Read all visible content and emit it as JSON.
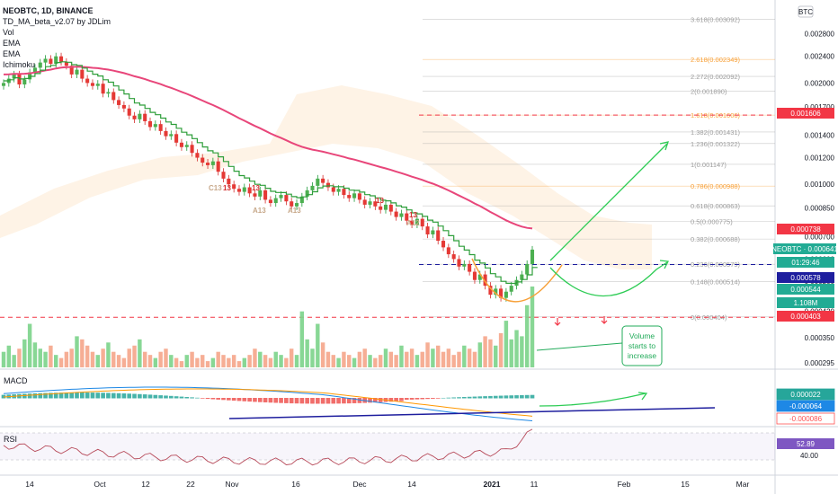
{
  "header": {
    "symbol_line": "NEOBTC, 1D, BINANCE",
    "indicators": [
      "TD_MA_beta_v2.07 by JDLim",
      "Vol",
      "EMA",
      "EMA",
      "Ichimoku"
    ]
  },
  "price_axis": {
    "currency": "BTC",
    "ticks": [
      "0.003200",
      "0.002800",
      "0.002400",
      "0.002000",
      "0.001700",
      "0.001400",
      "0.001200",
      "0.001000",
      "0.000850",
      "0.000700",
      "0.000600",
      "0.000500",
      "0.000420",
      "0.000350",
      "0.000295"
    ],
    "badges": [
      {
        "text": "0.001606",
        "color": "#f23645"
      },
      {
        "text": "0.000738",
        "color": "#f23645"
      },
      {
        "text": "NEOBTC · 0.000641",
        "color": "#22ab94"
      },
      {
        "text": "01:29:46",
        "color": "#22ab94"
      },
      {
        "text": "0.000578",
        "color": "#1e1e9e"
      },
      {
        "text": "0.000544",
        "color": "#22ab94"
      },
      {
        "text": "1.108M",
        "color": "#22ab94"
      },
      {
        "text": "0.000403",
        "color": "#f23645"
      }
    ]
  },
  "fibonacci": [
    {
      "label": "3.618(0.003092)",
      "color": "#9e9e9e"
    },
    {
      "label": "2.618(0.002349)",
      "color": "#f7a13a"
    },
    {
      "label": "2.272(0.002092)",
      "color": "#9e9e9e"
    },
    {
      "label": "2(0.001890)",
      "color": "#9e9e9e"
    },
    {
      "label": "1.618(0.001606)",
      "color": "#f7a13a"
    },
    {
      "label": "1.382(0.001431)",
      "color": "#9e9e9e"
    },
    {
      "label": "1.236(0.001322)",
      "color": "#9e9e9e"
    },
    {
      "label": "1(0.001147)",
      "color": "#9e9e9e"
    },
    {
      "label": "0.786(0.000988)",
      "color": "#f7a13a"
    },
    {
      "label": "0.618(0.000863)",
      "color": "#9e9e9e"
    },
    {
      "label": "0.5(0.000775)",
      "color": "#9e9e9e"
    },
    {
      "label": "0.382(0.000688)",
      "color": "#9e9e9e"
    },
    {
      "label": "0.236(0.000579)",
      "color": "#9e9e9e"
    },
    {
      "label": "0.148(0.000514)",
      "color": "#9e9e9e"
    },
    {
      "label": "0(0.000404)",
      "color": "#9e9e9e"
    }
  ],
  "annotation": {
    "text": "Volume\nstarts to\nincrease",
    "color": "#22ab5a"
  },
  "td_labels": [
    "C13",
    "13",
    "A13",
    "13",
    "A13",
    "13",
    "A12",
    "13"
  ],
  "macd": {
    "label": "MACD",
    "badges": [
      {
        "text": "0.000022",
        "color": "#26a69a"
      },
      {
        "text": "-0.000064",
        "color": "#1e88e5"
      },
      {
        "text": "-0.000086",
        "color": "#ff5252"
      }
    ]
  },
  "rsi": {
    "label": "RSI",
    "badge": {
      "text": "52.89",
      "color": "#7e57c2"
    },
    "ticks": [
      "40.00"
    ]
  },
  "time_axis": {
    "ticks": [
      "14",
      "Oct",
      "12",
      "22",
      "Nov",
      "16",
      "Dec",
      "14",
      "2021",
      "11",
      "Feb",
      "15",
      "Mar"
    ]
  },
  "chart_data": {
    "type": "candlestick",
    "title": "NEOBTC, 1D, BINANCE",
    "ylabel": "BTC",
    "ylim": [
      0.000295,
      0.0034
    ],
    "y_scale": "log",
    "close_series": [
      0.002,
      0.00206,
      0.00212,
      0.00198,
      0.00205,
      0.00215,
      0.00222,
      0.0023,
      0.00236,
      0.00228,
      0.0024,
      0.00231,
      0.00225,
      0.00212,
      0.00219,
      0.00206,
      0.002,
      0.00196,
      0.00199,
      0.00186,
      0.00188,
      0.00178,
      0.00172,
      0.00168,
      0.0016,
      0.00156,
      0.00162,
      0.00154,
      0.00148,
      0.00151,
      0.00144,
      0.00139,
      0.00141,
      0.00133,
      0.00129,
      0.00131,
      0.00124,
      0.0012,
      0.00116,
      0.00114,
      0.00117,
      0.00109,
      0.00104,
      0.001,
      0.00097,
      0.00095,
      0.00098,
      0.00094,
      0.00092,
      0.00096,
      0.0009,
      0.00088,
      0.00091,
      0.00093,
      0.00089,
      0.00086,
      0.00088,
      0.00092,
      0.00096,
      0.00099,
      0.00104,
      0.00101,
      0.00098,
      0.00095,
      0.00097,
      0.00093,
      0.00091,
      0.00094,
      0.0009,
      0.00087,
      0.00089,
      0.00086,
      0.00084,
      0.00087,
      0.00083,
      0.0008,
      0.00082,
      0.00078,
      0.00076,
      0.00079,
      0.00075,
      0.00071,
      0.00073,
      0.00068,
      0.00065,
      0.00062,
      0.0006,
      0.00057,
      0.00058,
      0.00055,
      0.00052,
      0.00054,
      0.0005,
      0.00047,
      0.00049,
      0.00046,
      0.00048,
      0.0005,
      0.00052,
      0.00054,
      0.00058,
      0.00064
    ],
    "volume": [
      0.5,
      0.7,
      0.4,
      0.6,
      0.9,
      1.4,
      0.8,
      0.6,
      0.5,
      0.7,
      0.4,
      0.3,
      0.5,
      0.6,
      1.0,
      0.9,
      0.7,
      0.5,
      0.4,
      0.6,
      0.8,
      0.5,
      0.4,
      0.3,
      0.6,
      0.7,
      0.9,
      0.5,
      0.4,
      0.3,
      0.5,
      0.6,
      0.4,
      0.3,
      0.2,
      0.4,
      0.5,
      0.3,
      0.4,
      0.2,
      0.3,
      0.5,
      0.4,
      0.3,
      0.4,
      0.2,
      0.3,
      0.4,
      0.6,
      0.5,
      0.4,
      0.3,
      0.5,
      0.4,
      0.3,
      0.6,
      0.4,
      1.8,
      0.9,
      0.6,
      1.4,
      0.8,
      0.5,
      0.4,
      0.3,
      0.5,
      0.4,
      0.3,
      0.5,
      0.6,
      0.4,
      0.3,
      0.4,
      0.6,
      0.5,
      0.4,
      0.7,
      0.5,
      0.6,
      0.4,
      0.5,
      0.8,
      0.6,
      0.7,
      0.5,
      0.6,
      0.4,
      0.5,
      0.7,
      0.6,
      0.5,
      0.8,
      1.0,
      0.9,
      0.7,
      1.1,
      1.5,
      0.9,
      1.2,
      1.0,
      2.0,
      2.6
    ]
  }
}
